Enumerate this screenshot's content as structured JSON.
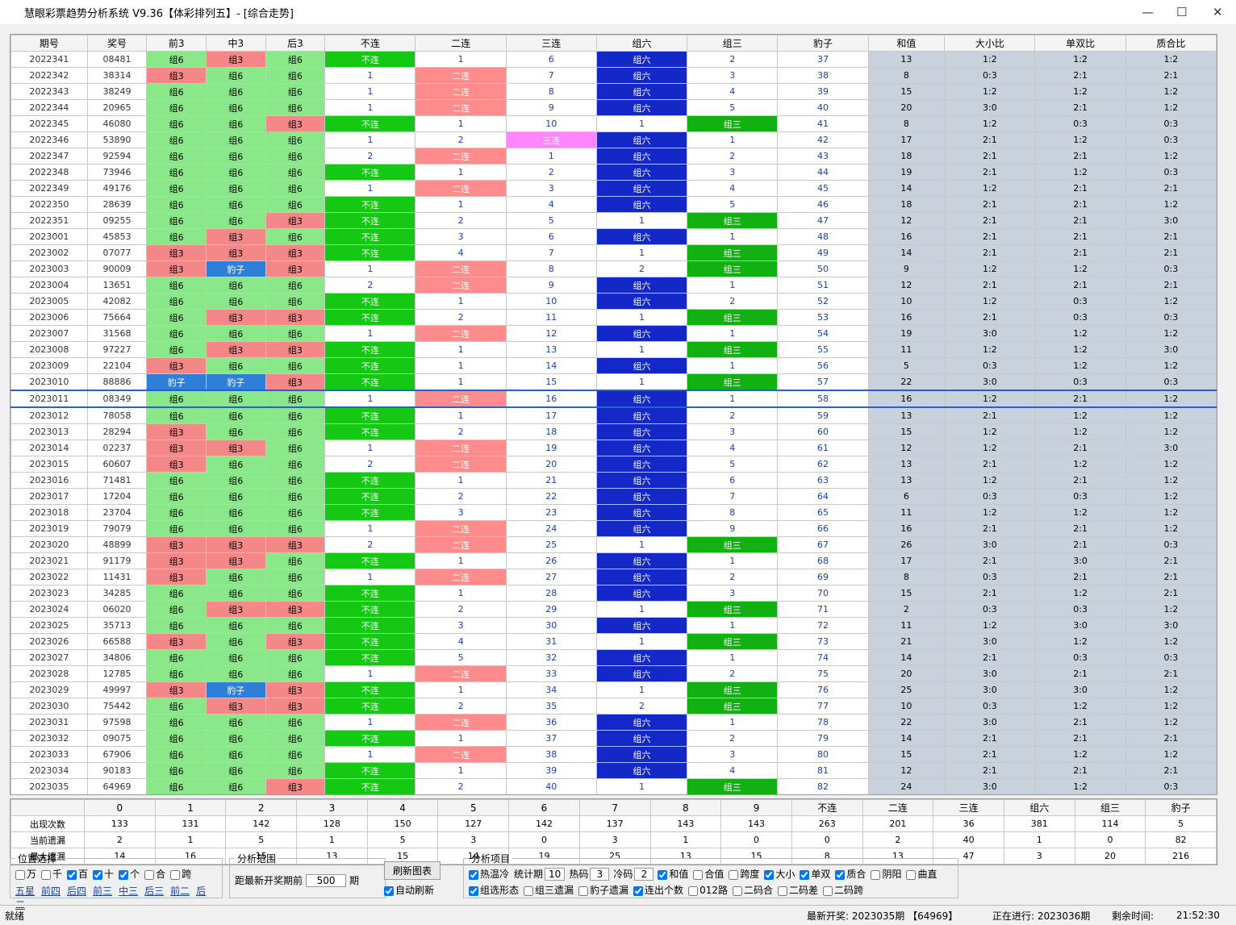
{
  "window": {
    "title": "慧眼彩票趋势分析系统 V9.36【体彩排列五】- [综合走势]"
  },
  "table": {
    "columns": [
      "期号",
      "奖号",
      "前3",
      "中3",
      "后3",
      "不连",
      "二连",
      "三连",
      "组六",
      "组三",
      "豹子",
      "和值",
      "大小比",
      "单双比",
      "质合比"
    ],
    "cell_colors": [
      null,
      null,
      null,
      null,
      null,
      "#14c814",
      "#ff8c8c",
      "#ff86ff",
      "#1428c8",
      "#12b012",
      null,
      null,
      null,
      null,
      null
    ],
    "form_colors": {
      "组6": "#8ae88a",
      "组3": "#f48888",
      "豹子": "#2f7fd8"
    },
    "selected_row": 21,
    "rows": [
      [
        "2022341",
        "08481",
        "组6",
        "组3",
        "组6",
        "不连",
        1,
        6,
        "组六",
        2,
        37,
        13,
        "1:2",
        "1:2",
        "1:2"
      ],
      [
        "2022342",
        "38314",
        "组3",
        "组6",
        "组6",
        1,
        "二连",
        7,
        "组六",
        3,
        38,
        8,
        "0:3",
        "2:1",
        "2:1"
      ],
      [
        "2022343",
        "38249",
        "组6",
        "组6",
        "组6",
        1,
        "二连",
        8,
        "组六",
        4,
        39,
        15,
        "1:2",
        "1:2",
        "1:2"
      ],
      [
        "2022344",
        "20965",
        "组6",
        "组6",
        "组6",
        1,
        "二连",
        9,
        "组六",
        5,
        40,
        20,
        "3:0",
        "2:1",
        "1:2"
      ],
      [
        "2022345",
        "46080",
        "组6",
        "组6",
        "组3",
        "不连",
        1,
        10,
        1,
        "组三",
        41,
        8,
        "1:2",
        "0:3",
        "0:3"
      ],
      [
        "2022346",
        "53890",
        "组6",
        "组6",
        "组6",
        1,
        2,
        "三连",
        "组六",
        1,
        42,
        17,
        "2:1",
        "1:2",
        "0:3"
      ],
      [
        "2022347",
        "92594",
        "组6",
        "组6",
        "组6",
        2,
        "二连",
        1,
        "组六",
        2,
        43,
        18,
        "2:1",
        "2:1",
        "1:2"
      ],
      [
        "2022348",
        "73946",
        "组6",
        "组6",
        "组6",
        "不连",
        1,
        2,
        "组六",
        3,
        44,
        19,
        "2:1",
        "1:2",
        "0:3"
      ],
      [
        "2022349",
        "49176",
        "组6",
        "组6",
        "组6",
        1,
        "二连",
        3,
        "组六",
        4,
        45,
        14,
        "1:2",
        "2:1",
        "2:1"
      ],
      [
        "2022350",
        "28639",
        "组6",
        "组6",
        "组6",
        "不连",
        1,
        4,
        "组六",
        5,
        46,
        18,
        "2:1",
        "2:1",
        "1:2"
      ],
      [
        "2022351",
        "09255",
        "组6",
        "组6",
        "组3",
        "不连",
        2,
        5,
        1,
        "组三",
        47,
        12,
        "2:1",
        "2:1",
        "3:0"
      ],
      [
        "2023001",
        "45853",
        "组6",
        "组3",
        "组6",
        "不连",
        3,
        6,
        "组六",
        1,
        48,
        16,
        "2:1",
        "2:1",
        "2:1"
      ],
      [
        "2023002",
        "07077",
        "组3",
        "组3",
        "组3",
        "不连",
        4,
        7,
        1,
        "组三",
        49,
        14,
        "2:1",
        "2:1",
        "2:1"
      ],
      [
        "2023003",
        "90009",
        "组3",
        "豹子",
        "组3",
        1,
        "二连",
        8,
        2,
        "组三",
        50,
        9,
        "1:2",
        "1:2",
        "0:3"
      ],
      [
        "2023004",
        "13651",
        "组6",
        "组6",
        "组6",
        2,
        "二连",
        9,
        "组六",
        1,
        51,
        12,
        "2:1",
        "2:1",
        "2:1"
      ],
      [
        "2023005",
        "42082",
        "组6",
        "组6",
        "组6",
        "不连",
        1,
        10,
        "组六",
        2,
        52,
        10,
        "1:2",
        "0:3",
        "1:2"
      ],
      [
        "2023006",
        "75664",
        "组6",
        "组3",
        "组3",
        "不连",
        2,
        11,
        1,
        "组三",
        53,
        16,
        "2:1",
        "0:3",
        "0:3"
      ],
      [
        "2023007",
        "31568",
        "组6",
        "组6",
        "组6",
        1,
        "二连",
        12,
        "组六",
        1,
        54,
        19,
        "3:0",
        "1:2",
        "1:2"
      ],
      [
        "2023008",
        "97227",
        "组6",
        "组3",
        "组3",
        "不连",
        1,
        13,
        1,
        "组三",
        55,
        11,
        "1:2",
        "1:2",
        "3:0"
      ],
      [
        "2023009",
        "22104",
        "组3",
        "组6",
        "组6",
        "不连",
        1,
        14,
        "组六",
        1,
        56,
        5,
        "0:3",
        "1:2",
        "1:2"
      ],
      [
        "2023010",
        "88886",
        "豹子",
        "豹子",
        "组3",
        "不连",
        1,
        15,
        1,
        "组三",
        57,
        22,
        "3:0",
        "0:3",
        "0:3"
      ],
      [
        "2023011",
        "08349",
        "组6",
        "组6",
        "组6",
        1,
        "二连",
        16,
        "组六",
        1,
        58,
        16,
        "1:2",
        "2:1",
        "1:2"
      ],
      [
        "2023012",
        "78058",
        "组6",
        "组6",
        "组6",
        "不连",
        1,
        17,
        "组六",
        2,
        59,
        13,
        "2:1",
        "1:2",
        "1:2"
      ],
      [
        "2023013",
        "28294",
        "组3",
        "组6",
        "组6",
        "不连",
        2,
        18,
        "组六",
        3,
        60,
        15,
        "1:2",
        "1:2",
        "1:2"
      ],
      [
        "2023014",
        "02237",
        "组3",
        "组3",
        "组6",
        1,
        "二连",
        19,
        "组六",
        4,
        61,
        12,
        "1:2",
        "2:1",
        "3:0"
      ],
      [
        "2023015",
        "60607",
        "组3",
        "组6",
        "组6",
        2,
        "二连",
        20,
        "组六",
        5,
        62,
        13,
        "2:1",
        "1:2",
        "1:2"
      ],
      [
        "2023016",
        "71481",
        "组6",
        "组6",
        "组6",
        "不连",
        1,
        21,
        "组六",
        6,
        63,
        13,
        "1:2",
        "2:1",
        "1:2"
      ],
      [
        "2023017",
        "17204",
        "组6",
        "组6",
        "组6",
        "不连",
        2,
        22,
        "组六",
        7,
        64,
        6,
        "0:3",
        "0:3",
        "1:2"
      ],
      [
        "2023018",
        "23704",
        "组6",
        "组6",
        "组6",
        "不连",
        3,
        23,
        "组六",
        8,
        65,
        11,
        "1:2",
        "1:2",
        "1:2"
      ],
      [
        "2023019",
        "79079",
        "组6",
        "组6",
        "组6",
        1,
        "二连",
        24,
        "组六",
        9,
        66,
        16,
        "2:1",
        "2:1",
        "1:2"
      ],
      [
        "2023020",
        "48899",
        "组3",
        "组3",
        "组3",
        2,
        "二连",
        25,
        1,
        "组三",
        67,
        26,
        "3:0",
        "2:1",
        "0:3"
      ],
      [
        "2023021",
        "91179",
        "组3",
        "组3",
        "组6",
        "不连",
        1,
        26,
        "组六",
        1,
        68,
        17,
        "2:1",
        "3:0",
        "2:1"
      ],
      [
        "2023022",
        "11431",
        "组3",
        "组6",
        "组6",
        1,
        "二连",
        27,
        "组六",
        2,
        69,
        8,
        "0:3",
        "2:1",
        "2:1"
      ],
      [
        "2023023",
        "34285",
        "组6",
        "组6",
        "组6",
        "不连",
        1,
        28,
        "组六",
        3,
        70,
        15,
        "2:1",
        "1:2",
        "2:1"
      ],
      [
        "2023024",
        "06020",
        "组6",
        "组3",
        "组3",
        "不连",
        2,
        29,
        1,
        "组三",
        71,
        2,
        "0:3",
        "0:3",
        "1:2"
      ],
      [
        "2023025",
        "35713",
        "组6",
        "组6",
        "组6",
        "不连",
        3,
        30,
        "组六",
        1,
        72,
        11,
        "1:2",
        "3:0",
        "3:0"
      ],
      [
        "2023026",
        "66588",
        "组3",
        "组6",
        "组3",
        "不连",
        4,
        31,
        1,
        "组三",
        73,
        21,
        "3:0",
        "1:2",
        "1:2"
      ],
      [
        "2023027",
        "34806",
        "组6",
        "组6",
        "组6",
        "不连",
        5,
        32,
        "组六",
        1,
        74,
        14,
        "2:1",
        "0:3",
        "0:3"
      ],
      [
        "2023028",
        "12785",
        "组6",
        "组6",
        "组6",
        1,
        "二连",
        33,
        "组六",
        2,
        75,
        20,
        "3:0",
        "2:1",
        "2:1"
      ],
      [
        "2023029",
        "49997",
        "组3",
        "豹子",
        "组3",
        "不连",
        1,
        34,
        1,
        "组三",
        76,
        25,
        "3:0",
        "3:0",
        "1:2"
      ],
      [
        "2023030",
        "75442",
        "组6",
        "组3",
        "组3",
        "不连",
        2,
        35,
        2,
        "组三",
        77,
        10,
        "0:3",
        "1:2",
        "1:2"
      ],
      [
        "2023031",
        "97598",
        "组6",
        "组6",
        "组6",
        1,
        "二连",
        36,
        "组六",
        1,
        78,
        22,
        "3:0",
        "2:1",
        "1:2"
      ],
      [
        "2023032",
        "09075",
        "组6",
        "组6",
        "组6",
        "不连",
        1,
        37,
        "组六",
        2,
        79,
        14,
        "2:1",
        "2:1",
        "2:1"
      ],
      [
        "2023033",
        "67906",
        "组6",
        "组6",
        "组6",
        1,
        "二连",
        38,
        "组六",
        3,
        80,
        15,
        "2:1",
        "1:2",
        "1:2"
      ],
      [
        "2023034",
        "90183",
        "组6",
        "组6",
        "组6",
        "不连",
        1,
        39,
        "组六",
        4,
        81,
        12,
        "2:1",
        "2:1",
        "2:1"
      ],
      [
        "2023035",
        "64969",
        "组6",
        "组6",
        "组3",
        "不连",
        2,
        40,
        1,
        "组三",
        82,
        24,
        "3:0",
        "1:2",
        "0:3"
      ]
    ]
  },
  "stats": {
    "digit_labels": [
      "0",
      "1",
      "2",
      "3",
      "4",
      "5",
      "6",
      "7",
      "8",
      "9"
    ],
    "item_labels": [
      "不连",
      "二连",
      "三连",
      "组六",
      "组三",
      "豹子"
    ],
    "rows": [
      {
        "label": "出现次数",
        "digits": [
          133,
          131,
          142,
          128,
          150,
          127,
          142,
          137,
          143,
          143
        ],
        "items": [
          263,
          201,
          36,
          381,
          114,
          5
        ]
      },
      {
        "label": "当前遗漏",
        "digits": [
          2,
          1,
          5,
          1,
          5,
          3,
          0,
          3,
          1,
          0
        ],
        "items": [
          0,
          2,
          40,
          1,
          0,
          82
        ]
      },
      {
        "label": "最大遗漏",
        "digits": [
          14,
          16,
          15,
          13,
          15,
          14,
          19,
          25,
          13,
          15
        ],
        "items": [
          8,
          13,
          47,
          3,
          20,
          216
        ]
      }
    ]
  },
  "panel": {
    "position": {
      "title": "位置选择",
      "options": [
        {
          "label": "万",
          "checked": false
        },
        {
          "label": "千",
          "checked": false
        },
        {
          "label": "百",
          "checked": true
        },
        {
          "label": "十",
          "checked": true
        },
        {
          "label": "个",
          "checked": true
        },
        {
          "label": "合",
          "checked": false
        },
        {
          "label": "跨",
          "checked": false
        }
      ],
      "links": [
        "五星",
        "前四",
        "后四",
        "前三",
        "中三",
        "后三",
        "前二",
        "后二"
      ]
    },
    "range": {
      "title": "分析范围",
      "label": "距最新开奖期前",
      "value": "500",
      "unit": "期"
    },
    "refresh": "刷新图表",
    "auto": {
      "label": "自动刷新",
      "checked": true
    },
    "analysis": {
      "title": "分析项目",
      "rows": [
        [
          {
            "label": "热温冷",
            "checked": true
          },
          {
            "label": "统计期",
            "value": "10"
          },
          {
            "label": "热码",
            "value": "3"
          },
          {
            "label": "冷码",
            "value": "2"
          },
          {
            "label": "和值",
            "checked": true
          },
          {
            "label": "合值",
            "checked": false
          },
          {
            "label": "跨度",
            "checked": false
          },
          {
            "label": "大小",
            "checked": true
          },
          {
            "label": "单双",
            "checked": true
          },
          {
            "label": "质合",
            "checked": true
          },
          {
            "label": "阴阳",
            "checked": false
          },
          {
            "label": "曲直",
            "checked": false
          }
        ],
        [
          {
            "label": "组选形态",
            "checked": true
          },
          {
            "label": "组三遗漏",
            "checked": false
          },
          {
            "label": "豹子遗漏",
            "checked": false
          },
          {
            "label": "连出个数",
            "checked": true
          },
          {
            "label": "012路",
            "checked": false
          },
          {
            "label": "二码合",
            "checked": false
          },
          {
            "label": "二码差",
            "checked": false
          },
          {
            "label": "二码跨",
            "checked": false
          }
        ]
      ]
    }
  },
  "status": {
    "ready": "就绪",
    "latest": "最新开奖: 2023035期 【64969】",
    "current": "正在进行: 2023036期",
    "remain_label": "剩余时间:",
    "remain": "21:52:30"
  }
}
